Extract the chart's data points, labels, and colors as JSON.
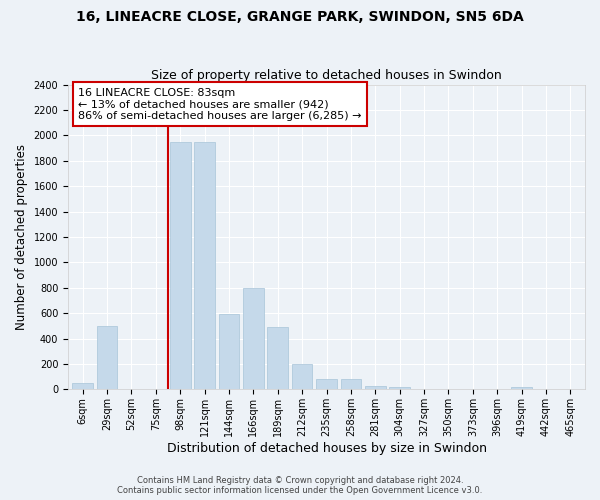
{
  "title1": "16, LINEACRE CLOSE, GRANGE PARK, SWINDON, SN5 6DA",
  "title2": "Size of property relative to detached houses in Swindon",
  "xlabel": "Distribution of detached houses by size in Swindon",
  "ylabel": "Number of detached properties",
  "categories": [
    "6sqm",
    "29sqm",
    "52sqm",
    "75sqm",
    "98sqm",
    "121sqm",
    "144sqm",
    "166sqm",
    "189sqm",
    "212sqm",
    "235sqm",
    "258sqm",
    "281sqm",
    "304sqm",
    "327sqm",
    "350sqm",
    "373sqm",
    "396sqm",
    "419sqm",
    "442sqm",
    "465sqm"
  ],
  "values": [
    50,
    500,
    0,
    0,
    1950,
    1950,
    590,
    800,
    490,
    200,
    80,
    80,
    30,
    20,
    0,
    0,
    0,
    0,
    20,
    0,
    0
  ],
  "bar_color": "#c5d9ea",
  "bar_edge_color": "#a8c4d8",
  "vline_x_index": 3.5,
  "vline_color": "#cc0000",
  "annotation_text": "16 LINEACRE CLOSE: 83sqm\n← 13% of detached houses are smaller (942)\n86% of semi-detached houses are larger (6,285) →",
  "annotation_box_color": "#ffffff",
  "annotation_box_edge": "#cc0000",
  "ylim": [
    0,
    2400
  ],
  "yticks": [
    0,
    200,
    400,
    600,
    800,
    1000,
    1200,
    1400,
    1600,
    1800,
    2000,
    2200,
    2400
  ],
  "footer1": "Contains HM Land Registry data © Crown copyright and database right 2024.",
  "footer2": "Contains public sector information licensed under the Open Government Licence v3.0.",
  "bg_color": "#edf2f7",
  "grid_color": "#ffffff",
  "title1_fontsize": 10,
  "title2_fontsize": 9,
  "tick_fontsize": 7,
  "ylabel_fontsize": 8.5,
  "xlabel_fontsize": 9
}
